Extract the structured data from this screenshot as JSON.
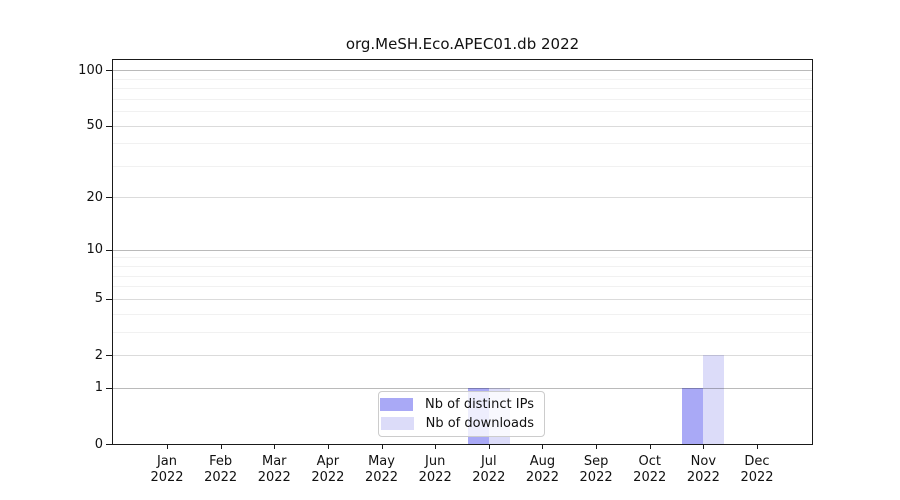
{
  "header": {
    "title": "org.MeSH.Eco.APEC01.db 2022"
  },
  "legend": {
    "items": [
      {
        "label": "Nb of distinct IPs",
        "color": "#a9a9f6"
      },
      {
        "label": "Nb of downloads",
        "color": "#dcdcf9"
      }
    ]
  },
  "chart_data": {
    "type": "bar",
    "title": "org.MeSH.Eco.APEC01.db 2022",
    "categories": [
      "Jan",
      "Feb",
      "Mar",
      "Apr",
      "May",
      "Jun",
      "Jul",
      "Aug",
      "Sep",
      "Oct",
      "Nov",
      "Dec"
    ],
    "x_tick_second_line": "2022",
    "series": [
      {
        "name": "Nb of distinct IPs",
        "color": "#a9a9f6",
        "values": [
          0,
          0,
          0,
          0,
          0,
          0,
          1,
          0,
          0,
          0,
          1,
          0
        ]
      },
      {
        "name": "Nb of downloads",
        "color": "#dcdcf9",
        "values": [
          0,
          0,
          0,
          0,
          0,
          0,
          1,
          0,
          0,
          0,
          2,
          0
        ]
      }
    ],
    "xlabel": "",
    "ylabel": "",
    "yscale": "log1p",
    "ylim": [
      0,
      115
    ],
    "y_major_ticks": [
      0,
      1,
      2,
      5,
      10,
      20,
      50,
      100
    ],
    "y_minor_gridlines": [
      3,
      4,
      6,
      7,
      8,
      9,
      30,
      40,
      60,
      70,
      80,
      90
    ],
    "grid": "horizontal",
    "legend_position": "lower center"
  }
}
